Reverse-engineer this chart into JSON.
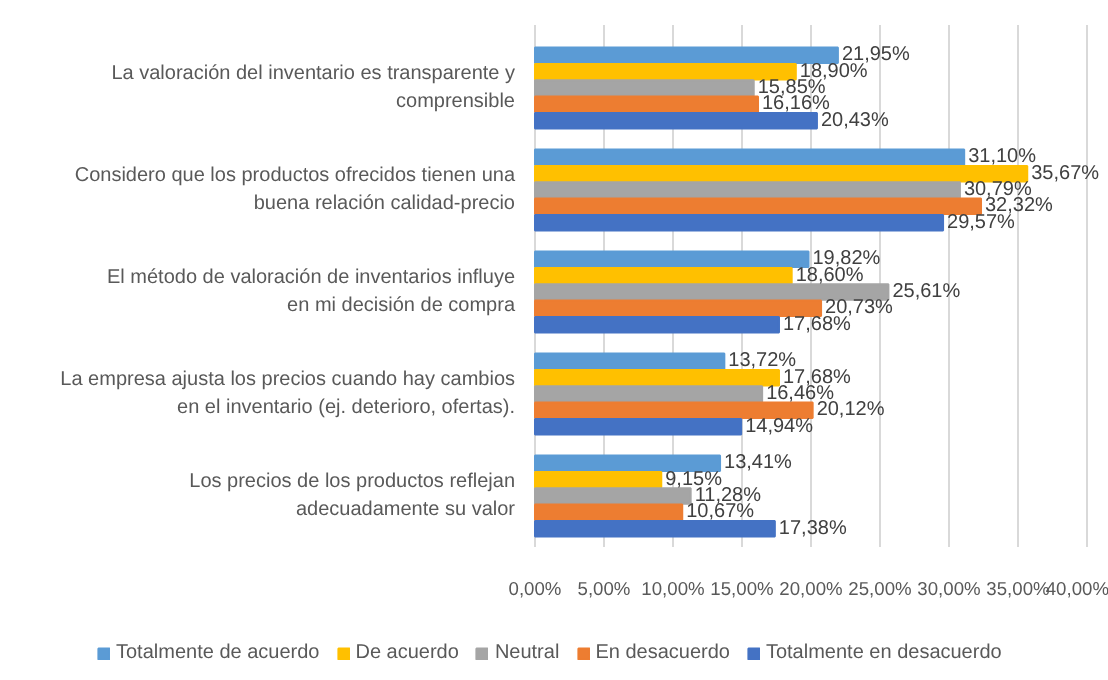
{
  "chart_data": {
    "type": "bar",
    "orientation": "horizontal",
    "categories": [
      "La valoración del inventario es transparente y comprensible",
      "Considero que los productos ofrecidos tienen una buena relación calidad-precio",
      "El método de valoración de inventarios influye en mi decisión de compra",
      "La empresa ajusta los precios cuando hay cambios en el inventario (ej. deterioro, ofertas).",
      "Los precios de los productos reflejan adecuadamente su valor"
    ],
    "series": [
      {
        "name": "Totalmente de acuerdo",
        "color": "#5b9bd5",
        "values": [
          21.95,
          31.1,
          19.82,
          13.72,
          13.41
        ],
        "value_labels": [
          "21,95%",
          "31,10%",
          "19,82%",
          "13,72%",
          "13,41%"
        ]
      },
      {
        "name": "De acuerdo",
        "color": "#ffc000",
        "values": [
          18.9,
          35.67,
          18.6,
          17.68,
          9.15
        ],
        "value_labels": [
          "18,90%",
          "35,67%",
          "18,60%",
          "17,68%",
          "9,15%"
        ]
      },
      {
        "name": "Neutral",
        "color": "#a5a5a5",
        "values": [
          15.85,
          30.79,
          25.61,
          16.46,
          11.28
        ],
        "value_labels": [
          "15,85%",
          "30,79%",
          "25,61%",
          "16,46%",
          "11,28%"
        ]
      },
      {
        "name": "En desacuerdo",
        "color": "#ed7d31",
        "values": [
          16.16,
          32.32,
          20.73,
          20.12,
          10.67
        ],
        "value_labels": [
          "16,16%",
          "32,32%",
          "20,73%",
          "20,12%",
          "10,67%"
        ]
      },
      {
        "name": "Totalmente en desacuerdo",
        "color": "#4472c4",
        "values": [
          20.43,
          29.57,
          17.68,
          14.94,
          17.38
        ],
        "value_labels": [
          "20,43%",
          "29,57%",
          "17,68%",
          "14,94%",
          "17,38%"
        ]
      }
    ],
    "xlim": [
      0,
      40
    ],
    "xticks": [
      {
        "value": 0,
        "label": "0,00%"
      },
      {
        "value": 5,
        "label": "5,00%"
      },
      {
        "value": 10,
        "label": "10,00%"
      },
      {
        "value": 15,
        "label": "15,00%"
      },
      {
        "value": 20,
        "label": "20,00%"
      },
      {
        "value": 25,
        "label": "25,00%"
      },
      {
        "value": 30,
        "label": "30,00%"
      },
      {
        "value": 35,
        "label": "35,00%"
      },
      {
        "value": 40,
        "label": "40,00%"
      }
    ],
    "grid": "x",
    "legend": "bottom"
  }
}
